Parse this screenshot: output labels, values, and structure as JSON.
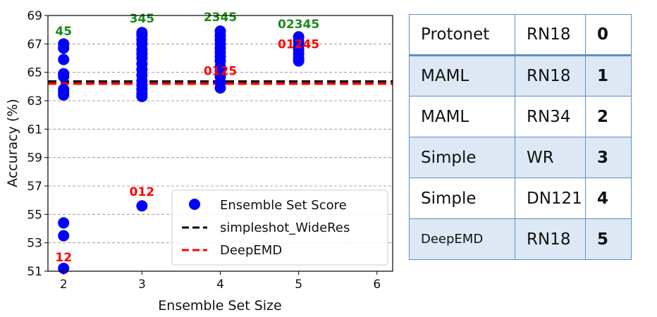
{
  "chart_data": {
    "type": "scatter",
    "xlabel": "Ensemble Set Size",
    "ylabel": "Accuracy (%)",
    "xlim": [
      1.8,
      6.2
    ],
    "ylim": [
      51,
      69
    ],
    "x_ticks": [
      "2",
      "3",
      "4",
      "5",
      "6"
    ],
    "y_ticks": [
      "51",
      "53",
      "55",
      "57",
      "59",
      "61",
      "63",
      "65",
      "67",
      "69"
    ],
    "grid": "horizontal dashed",
    "legend_position": "lower-right",
    "series": [
      {
        "name": "Ensemble Set Score",
        "color": "#0000ff",
        "points": [
          [
            2,
            51.2
          ],
          [
            2,
            53.5
          ],
          [
            2,
            54.4
          ],
          [
            2,
            63.4
          ],
          [
            2,
            63.6
          ],
          [
            2,
            63.8
          ],
          [
            2,
            64.7
          ],
          [
            2,
            64.9
          ],
          [
            2,
            65.9
          ],
          [
            2,
            66.7
          ],
          [
            2,
            67.0
          ],
          [
            3,
            55.6
          ],
          [
            3,
            63.3
          ],
          [
            3,
            63.5
          ],
          [
            3,
            63.8
          ],
          [
            3,
            64.1
          ],
          [
            3,
            64.4
          ],
          [
            3,
            64.8
          ],
          [
            3,
            65.2
          ],
          [
            3,
            65.6
          ],
          [
            3,
            66.0
          ],
          [
            3,
            66.3
          ],
          [
            3,
            66.6
          ],
          [
            3,
            67.0
          ],
          [
            3,
            67.3
          ],
          [
            3,
            67.6
          ],
          [
            3,
            67.8
          ],
          [
            4,
            63.9
          ],
          [
            4,
            64.3
          ],
          [
            4,
            64.7
          ],
          [
            4,
            65.1
          ],
          [
            4,
            65.4
          ],
          [
            4,
            65.8
          ],
          [
            4,
            66.1
          ],
          [
            4,
            66.4
          ],
          [
            4,
            66.7
          ],
          [
            4,
            67.0
          ],
          [
            4,
            67.3
          ],
          [
            4,
            67.6
          ],
          [
            4,
            67.9
          ],
          [
            5,
            65.8
          ],
          [
            5,
            66.0
          ],
          [
            5,
            66.3
          ],
          [
            5,
            66.6
          ],
          [
            5,
            66.9
          ],
          [
            5,
            67.2
          ],
          [
            5,
            67.5
          ]
        ]
      }
    ],
    "reference_lines": [
      {
        "name": "simpleshot_WideRes",
        "y": 64.35,
        "color": "#000000",
        "style": "dashed"
      },
      {
        "name": "DeepEMD",
        "y": 64.2,
        "color": "#ff0000",
        "style": "dashed"
      }
    ],
    "annotations": [
      {
        "text": "45",
        "x": 2,
        "y": 67.6,
        "color": "#1a8a1a"
      },
      {
        "text": "12",
        "x": 2,
        "y": 51.7,
        "color": "#ff0000"
      },
      {
        "text": "345",
        "x": 3,
        "y": 68.5,
        "color": "#1a8a1a"
      },
      {
        "text": "012",
        "x": 3,
        "y": 56.3,
        "color": "#ff0000"
      },
      {
        "text": "2345",
        "x": 4,
        "y": 68.6,
        "color": "#1a8a1a"
      },
      {
        "text": "0125",
        "x": 4,
        "y": 64.8,
        "color": "#ff0000"
      },
      {
        "text": "02345",
        "x": 5,
        "y": 68.1,
        "color": "#1a8a1a"
      },
      {
        "text": "01245",
        "x": 5,
        "y": 66.7,
        "color": "#ff0000"
      }
    ]
  },
  "table": {
    "rows": [
      {
        "method": "Protonet",
        "backbone": "RN18",
        "id": "0"
      },
      {
        "method": "MAML",
        "backbone": "RN18",
        "id": "1"
      },
      {
        "method": "MAML",
        "backbone": "RN34",
        "id": "2"
      },
      {
        "method": "Simple",
        "backbone": "WR",
        "id": "3"
      },
      {
        "method": "Simple",
        "backbone": "DN121",
        "id": "4"
      },
      {
        "method": "DeepEMD",
        "backbone": "RN18",
        "id": "5"
      }
    ]
  }
}
